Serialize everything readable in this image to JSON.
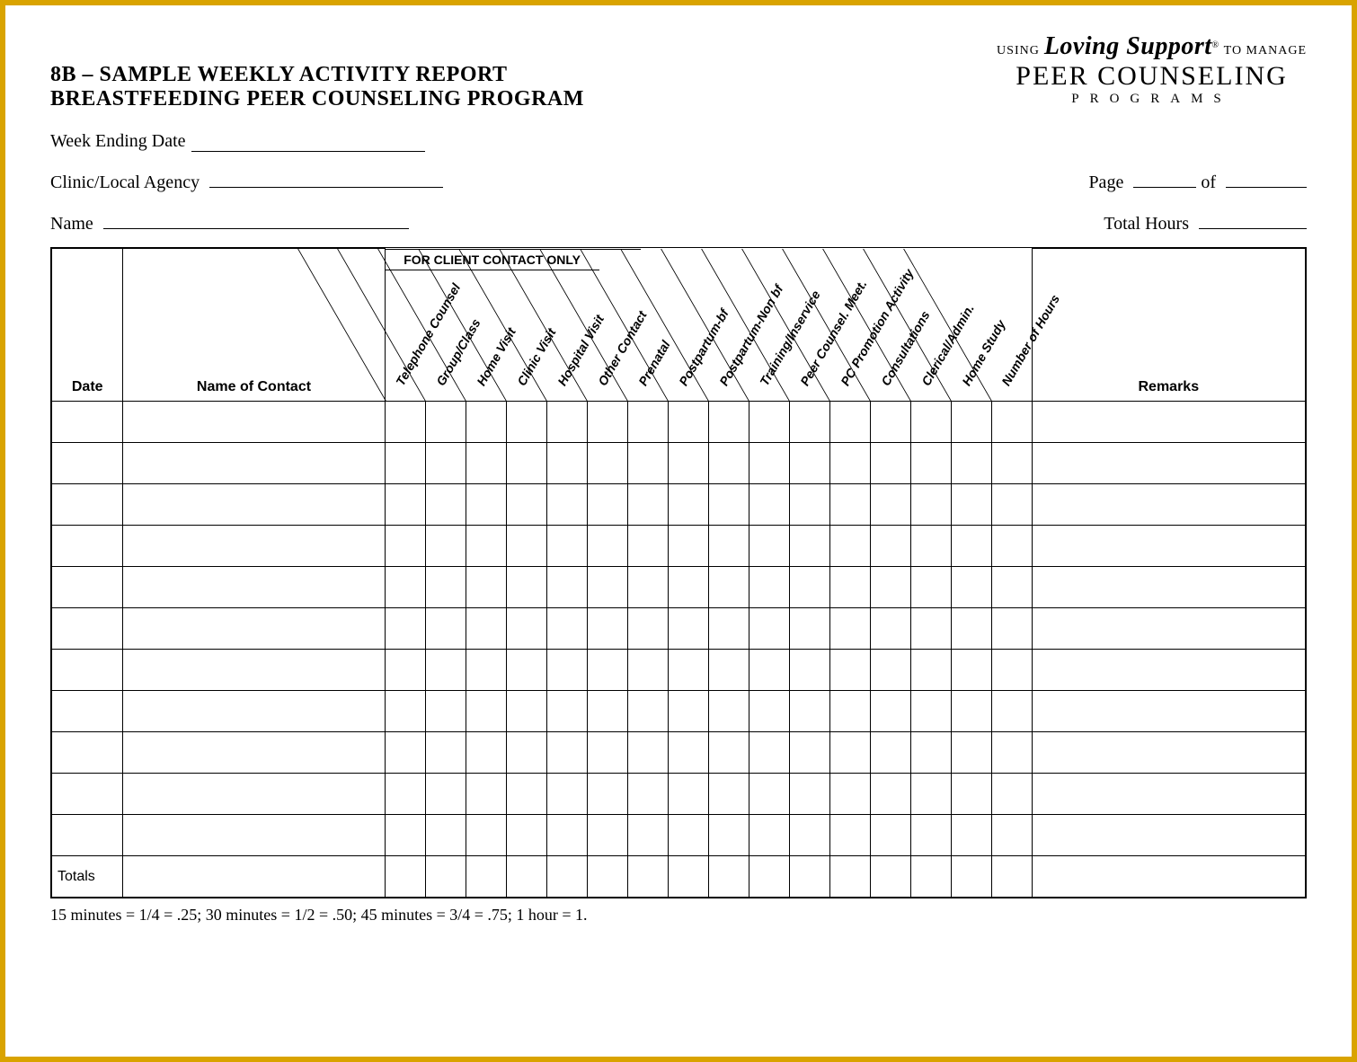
{
  "logo": {
    "line1_using": "USING",
    "line1_loving": "Loving Support",
    "line1_reg": "®",
    "line1_tomanage": "TO MANAGE",
    "line2": "PEER COUNSELING",
    "line3": "PROGRAMS"
  },
  "title": {
    "line1": "8B – SAMPLE WEEKLY ACTIVITY REPORT",
    "line2": "BREASTFEEDING PEER COUNSELING PROGRAM"
  },
  "fields": {
    "week_ending_label": "Week Ending Date",
    "clinic_label": "Clinic/Local Agency",
    "name_label": "Name",
    "page_label": "Page",
    "of_label": "of",
    "total_hours_label": "Total Hours"
  },
  "table": {
    "header_date": "Date",
    "header_name": "Name of Contact",
    "header_remarks": "Remarks",
    "client_contact_banner": "FOR CLIENT CONTACT ONLY",
    "diag_cols": [
      "Telephone Counsel",
      "Group/Class",
      "Home Visit",
      "Clinic Visit",
      "Hospital Visit",
      "Other Contact",
      "Prenatal",
      "Postpartum-bf",
      "Postpartum-Non bf",
      "Training/Inservice",
      "Peer Counsel. Meet.",
      "PC Promotion Activity",
      "Consultations",
      "Clerical/Admin.",
      "Home Study",
      "Number of Hours"
    ],
    "row_count": 11,
    "totals_label": "Totals"
  },
  "footnote": "15 minutes = 1/4 = .25; 30 minutes = 1/2 = .50; 45 minutes = 3/4 = .75; 1 hour = 1.",
  "layout": {
    "client_contact_col_span": 7,
    "diag_col_count": 16
  }
}
